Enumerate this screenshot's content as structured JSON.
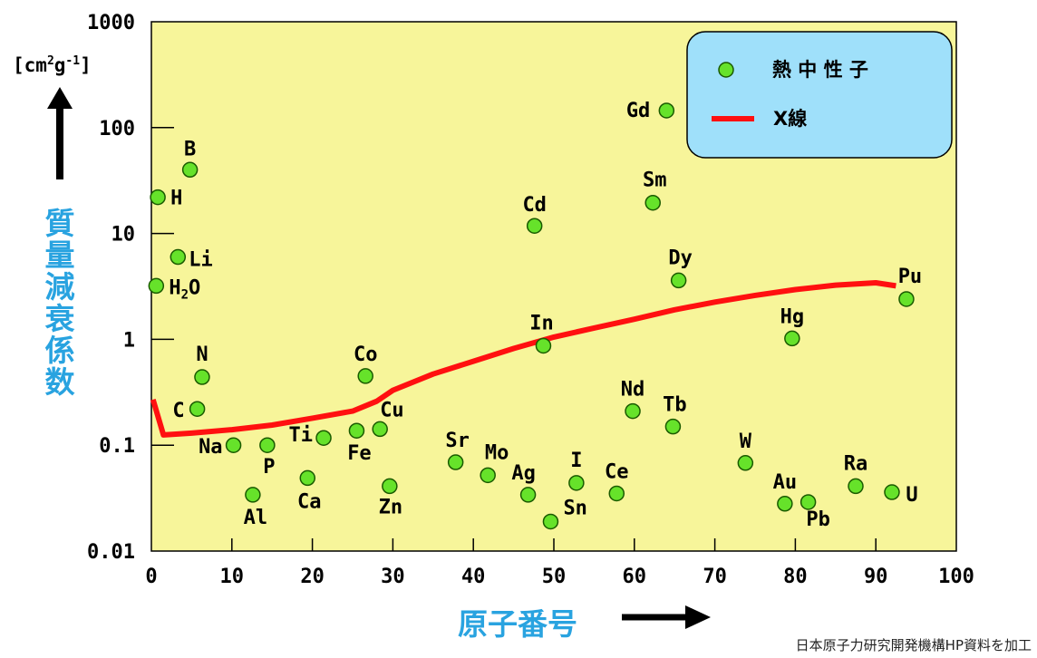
{
  "chart_data": {
    "type": "scatter",
    "y_axis_title": "質量減衰係数",
    "y_unit": "[cm²g⁻¹]",
    "y_unit_base": "[cm",
    "y_unit_sup1": "2",
    "y_unit_mid": "g",
    "y_unit_sup2": "-1",
    "y_unit_end": "]",
    "x_axis_title": "原子番号",
    "yscale": "log",
    "xlim": [
      0,
      100
    ],
    "ylim": [
      0.01,
      1000
    ],
    "x_ticks": [
      "0",
      "10",
      "20",
      "30",
      "40",
      "50",
      "60",
      "70",
      "80",
      "90",
      "100"
    ],
    "y_ticks": [
      "0.01",
      "0.1",
      "1",
      "10",
      "100",
      "1000"
    ],
    "plot_background": "#f7f59a",
    "colors": {
      "neutron_fill": "#66e22a",
      "neutron_stroke": "#1a5a00",
      "xray": "#ff1010",
      "legend_bg": "#9fe0fa",
      "axis_title": "#29a3e0"
    },
    "legend": {
      "position": "top-right",
      "neutron_label": "熱 中 性 子",
      "xray_label": "X線"
    },
    "series": [
      {
        "name": "熱中性子",
        "points": [
          {
            "label": "H",
            "x": 0.8,
            "y": 22
          },
          {
            "label": "H2O",
            "label_main": "H",
            "label_sub": "2",
            "label_end": "O",
            "x": 0.6,
            "y": 3.2
          },
          {
            "label": "Li",
            "x": 3.3,
            "y": 6.0
          },
          {
            "label": "B",
            "x": 4.8,
            "y": 40
          },
          {
            "label": "C",
            "x": 5.7,
            "y": 0.22
          },
          {
            "label": "N",
            "x": 6.3,
            "y": 0.44
          },
          {
            "label": "Na",
            "x": 10.2,
            "y": 0.1
          },
          {
            "label": "Al",
            "x": 12.6,
            "y": 0.034
          },
          {
            "label": "P",
            "x": 14.4,
            "y": 0.1
          },
          {
            "label": "Ca",
            "x": 19.4,
            "y": 0.049
          },
          {
            "label": "Ti",
            "x": 21.4,
            "y": 0.117
          },
          {
            "label": "Fe",
            "x": 25.5,
            "y": 0.137
          },
          {
            "label": "Co",
            "x": 26.6,
            "y": 0.45
          },
          {
            "label": "Cu",
            "x": 28.4,
            "y": 0.142
          },
          {
            "label": "Zn",
            "x": 29.6,
            "y": 0.041
          },
          {
            "label": "Sr",
            "x": 37.8,
            "y": 0.069
          },
          {
            "label": "Mo",
            "x": 41.8,
            "y": 0.052
          },
          {
            "label": "Ag",
            "x": 46.8,
            "y": 0.034
          },
          {
            "label": "Cd",
            "x": 47.6,
            "y": 11.8
          },
          {
            "label": "In",
            "x": 48.7,
            "y": 0.87
          },
          {
            "label": "Sn",
            "x": 49.6,
            "y": 0.019
          },
          {
            "label": "I",
            "x": 52.8,
            "y": 0.044
          },
          {
            "label": "Ce",
            "x": 57.8,
            "y": 0.035
          },
          {
            "label": "Nd",
            "x": 59.8,
            "y": 0.21
          },
          {
            "label": "Sm",
            "x": 62.3,
            "y": 19.5
          },
          {
            "label": "Gd",
            "x": 64.0,
            "y": 145
          },
          {
            "label": "Tb",
            "x": 64.8,
            "y": 0.15
          },
          {
            "label": "Dy",
            "x": 65.5,
            "y": 3.6
          },
          {
            "label": "W",
            "x": 73.8,
            "y": 0.068
          },
          {
            "label": "Au",
            "x": 78.7,
            "y": 0.028
          },
          {
            "label": "Hg",
            "x": 79.6,
            "y": 1.02
          },
          {
            "label": "Pb",
            "x": 81.6,
            "y": 0.029
          },
          {
            "label": "Ra",
            "x": 87.5,
            "y": 0.041
          },
          {
            "label": "U",
            "x": 92.0,
            "y": 0.036
          },
          {
            "label": "Pu",
            "x": 93.8,
            "y": 2.4
          }
        ]
      },
      {
        "name": "X線",
        "line": [
          [
            0.2,
            0.27
          ],
          [
            1.5,
            0.125
          ],
          [
            5,
            0.13
          ],
          [
            10,
            0.14
          ],
          [
            15,
            0.155
          ],
          [
            20,
            0.18
          ],
          [
            25,
            0.21
          ],
          [
            28,
            0.26
          ],
          [
            30,
            0.33
          ],
          [
            35,
            0.47
          ],
          [
            40,
            0.62
          ],
          [
            45,
            0.82
          ],
          [
            50,
            1.05
          ],
          [
            55,
            1.28
          ],
          [
            60,
            1.55
          ],
          [
            65,
            1.9
          ],
          [
            70,
            2.25
          ],
          [
            75,
            2.6
          ],
          [
            80,
            2.95
          ],
          [
            85,
            3.25
          ],
          [
            90,
            3.42
          ],
          [
            92.5,
            3.2
          ]
        ]
      }
    ]
  },
  "credit": "日本原子力研究開発機構HP資料を加工"
}
